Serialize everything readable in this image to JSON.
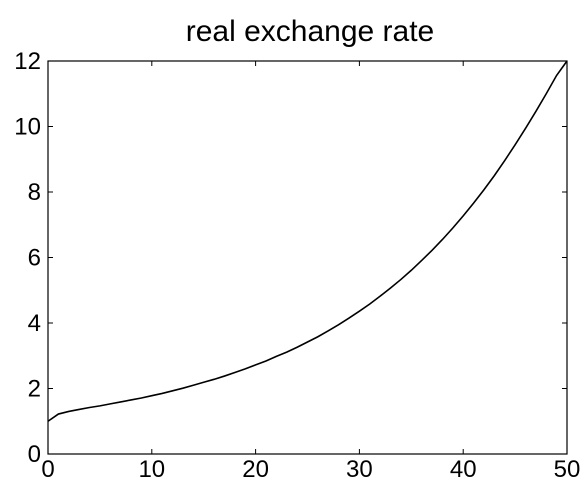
{
  "chart_data": {
    "type": "line",
    "title": "real exchange rate",
    "xlabel": "",
    "ylabel": "",
    "xlim": [
      0,
      50
    ],
    "ylim": [
      0,
      12
    ],
    "x_ticks": [
      0,
      10,
      20,
      30,
      40,
      50
    ],
    "y_ticks": [
      0,
      2,
      4,
      6,
      8,
      10,
      12
    ],
    "x_tick_labels": [
      "0",
      "10",
      "20",
      "30",
      "40",
      "50"
    ],
    "y_tick_labels": [
      "0",
      "2",
      "4",
      "6",
      "8",
      "10",
      "12"
    ],
    "grid": false,
    "series": [
      {
        "color": "#000000",
        "x": [
          0,
          1,
          2,
          3,
          4,
          5,
          6,
          7,
          8,
          9,
          10,
          11,
          12,
          13,
          14,
          15,
          16,
          17,
          18,
          19,
          20,
          21,
          22,
          23,
          24,
          25,
          26,
          27,
          28,
          29,
          30,
          31,
          32,
          33,
          34,
          35,
          36,
          37,
          38,
          39,
          40,
          41,
          42,
          43,
          44,
          45,
          46,
          47,
          48,
          49,
          50
        ],
        "y": [
          1.0,
          1.22,
          1.3,
          1.36,
          1.42,
          1.47,
          1.53,
          1.59,
          1.65,
          1.71,
          1.78,
          1.85,
          1.93,
          2.01,
          2.1,
          2.19,
          2.28,
          2.38,
          2.49,
          2.6,
          2.72,
          2.84,
          2.98,
          3.11,
          3.26,
          3.42,
          3.58,
          3.76,
          3.95,
          4.15,
          4.36,
          4.58,
          4.82,
          5.07,
          5.33,
          5.61,
          5.91,
          6.22,
          6.55,
          6.9,
          7.27,
          7.66,
          8.07,
          8.5,
          8.96,
          9.44,
          9.94,
          10.46,
          11.0,
          11.56,
          12.0
        ]
      }
    ]
  }
}
